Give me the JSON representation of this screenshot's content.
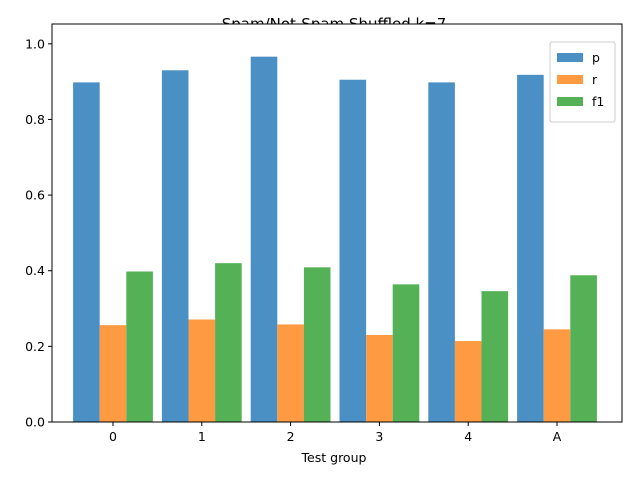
{
  "chart_data": {
    "type": "bar",
    "title": "Spam/Not-Spam Shuffled k=7",
    "xlabel": "Test group",
    "ylabel": "",
    "categories": [
      "0",
      "1",
      "2",
      "3",
      "4",
      "A"
    ],
    "ylim": [
      0,
      1.0
    ],
    "yticks": [
      "0.0",
      "0.2",
      "0.4",
      "0.6",
      "0.8",
      "1.0"
    ],
    "legend_position": "top-right",
    "series": [
      {
        "name": "p",
        "color": "#4a90c4",
        "values": [
          0.898,
          0.93,
          0.966,
          0.905,
          0.898,
          0.918
        ]
      },
      {
        "name": "r",
        "color": "#fe9a42",
        "values": [
          0.256,
          0.271,
          0.258,
          0.23,
          0.214,
          0.245
        ]
      },
      {
        "name": "f1",
        "color": "#55b155",
        "values": [
          0.398,
          0.42,
          0.409,
          0.364,
          0.346,
          0.388
        ]
      }
    ]
  }
}
